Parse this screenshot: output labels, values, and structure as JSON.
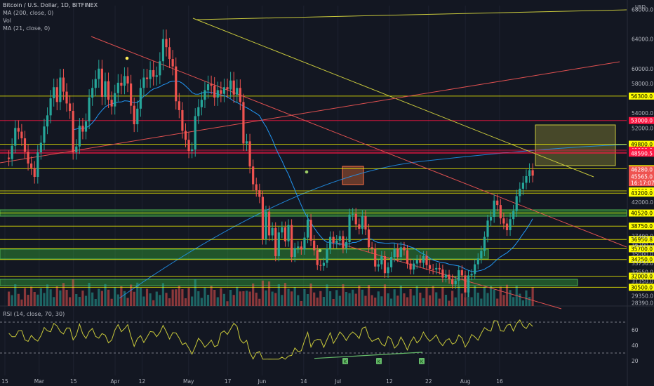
{
  "header": {
    "symbol": "Bitcoin / U.S. Dollar, 1D, BITFINEX",
    "ind_ma200": "MA (200, close, 0)",
    "ind_vol": "Vol",
    "ind_ma21": "MA (21, close, 0)",
    "rsi_label": "RSI (14, close, 70, 30)"
  },
  "colors": {
    "background": "#131722",
    "up": "#26a69a",
    "down": "#ef5350",
    "ma21": "#2196f3",
    "yellow_level": "#ffff00",
    "red_level": "#ff1744",
    "trend_yellow": "#c8c83c",
    "rsi": "#c9c93a"
  },
  "chart_data": {
    "type": "candlestick",
    "symbol": "BTCUSD",
    "timeframe": "1D",
    "exchange": "BITFINEX",
    "currency": "USD",
    "x_ticks": [
      "15",
      "Mar",
      "15",
      "Apr",
      "12",
      "May",
      "17",
      "Jun",
      "14",
      "Jul",
      "12",
      "22",
      "Aug",
      "16"
    ],
    "y_ticks": [
      "68000.0",
      "64000.0",
      "60000.0",
      "58000.0",
      "54000.0",
      "52000.0",
      "42000.0",
      "37400.0",
      "36200.0",
      "35000.0",
      "33750.0",
      "32550.0",
      "31350.0",
      "29350.0",
      "28390.0"
    ],
    "levels_yellow": [
      "56300.0",
      "49800.0",
      "46500.0",
      "43500.0",
      "43200.0",
      "40520.0",
      "38750.0",
      "36950.8",
      "35700.0",
      "34250.0",
      "32000.0",
      "30500.0"
    ],
    "levels_red": [
      "53000.0",
      "49000.0",
      "48719.9",
      "48590.5"
    ],
    "last_price": "45565.0",
    "last_price_2": "46280.0",
    "countdown": "16:17:07",
    "rsi": {
      "levels": [
        70,
        30
      ],
      "ticks": [
        "60",
        "40",
        "20"
      ],
      "markers": [
        "K",
        "K",
        "K"
      ]
    }
  }
}
